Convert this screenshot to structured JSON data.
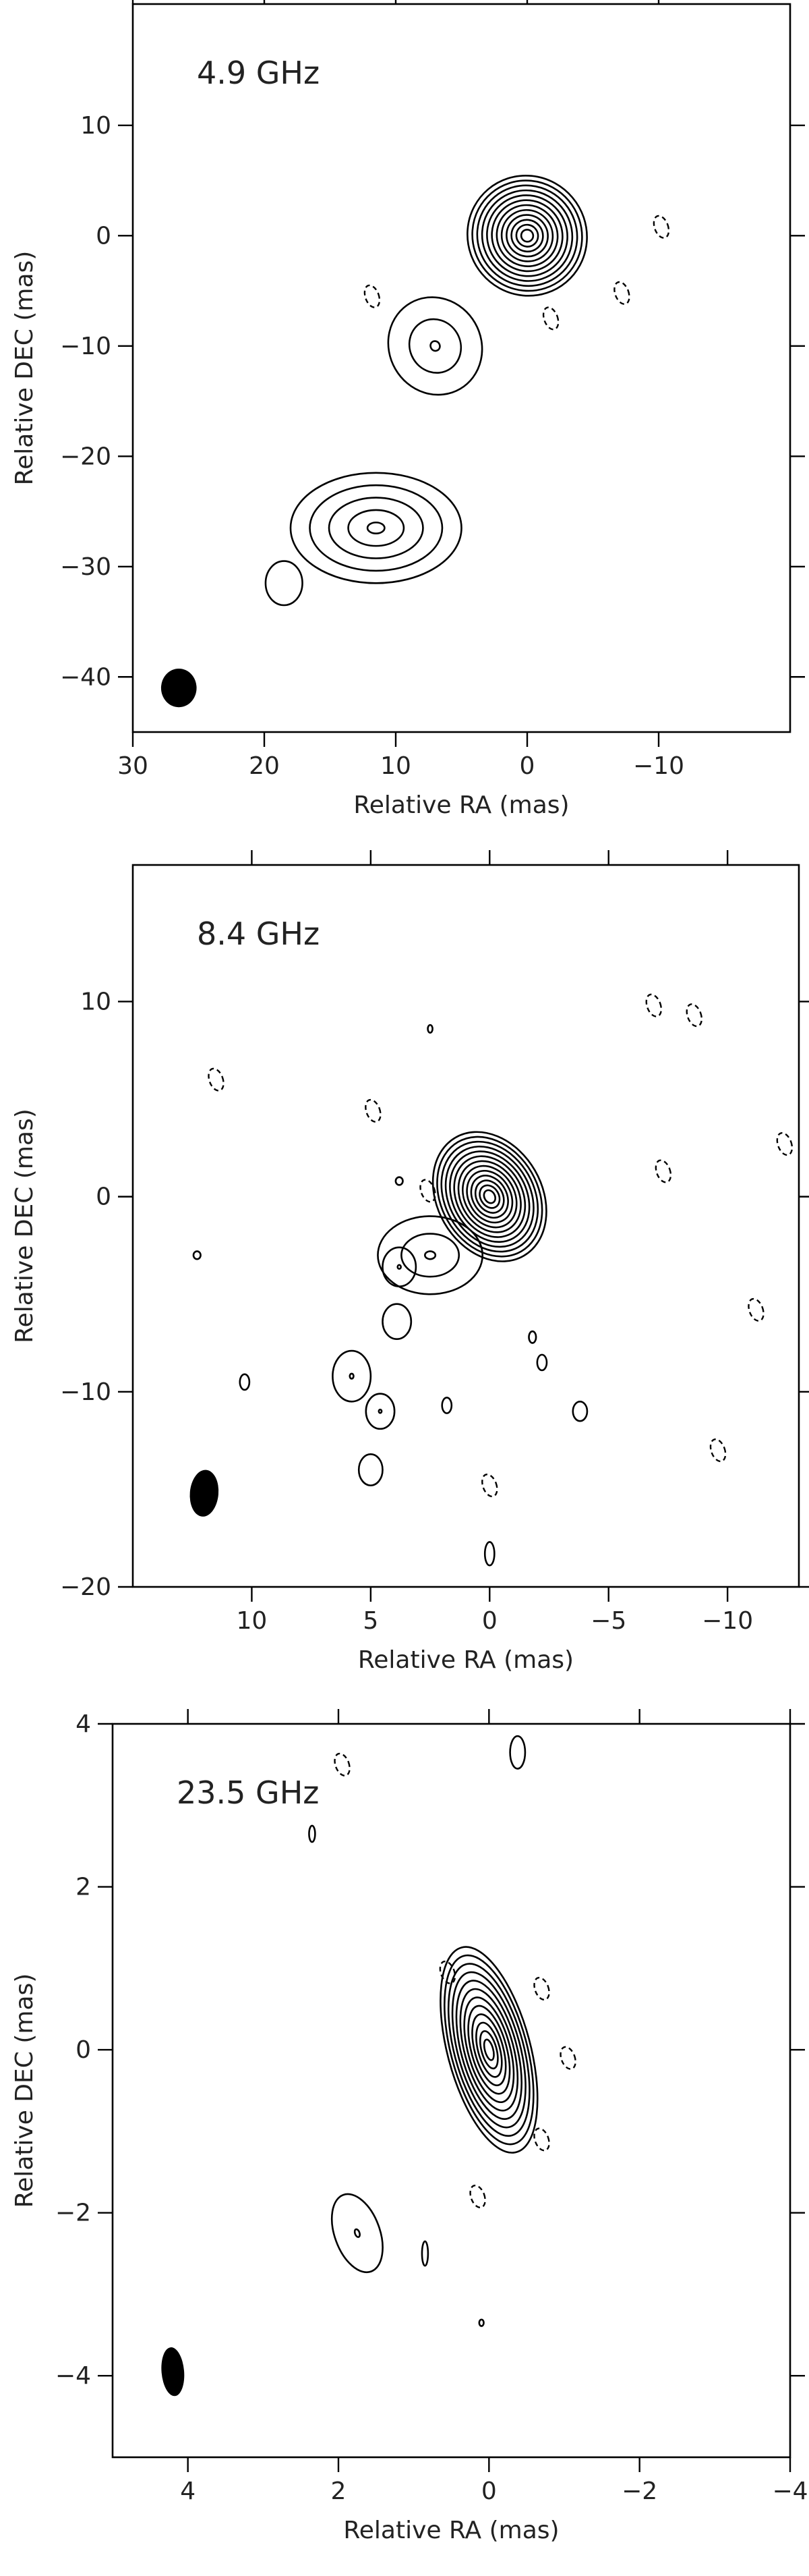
{
  "chart_data": [
    {
      "type": "contour",
      "annotation": "4.9 GHz",
      "xlabel": "Relative RA (mas)",
      "ylabel": "Relative DEC (mas)",
      "xlim": [
        30,
        -20
      ],
      "ylim": [
        -45,
        21
      ],
      "x_reversed": true,
      "xticks": [
        30,
        20,
        10,
        0,
        -10
      ],
      "yticks": [
        10,
        0,
        -10,
        -20,
        -30,
        -40
      ],
      "grid": false,
      "beam": {
        "x": 26.5,
        "y": -41,
        "major_mas": 3.5,
        "minor_mas": 2.7,
        "pa_deg": 0
      },
      "components": [
        {
          "x": 0.0,
          "y": 0.0,
          "levels": 12,
          "sx": 4.5,
          "sy": 5.5,
          "angle": -40
        },
        {
          "x": 11.5,
          "y": -26.5,
          "levels": 5,
          "sx": 6.5,
          "sy": 5.0,
          "angle": 0
        },
        {
          "x": 7.0,
          "y": -10.0,
          "levels": 3,
          "sx": 3.5,
          "sy": 4.5,
          "angle": -30
        },
        {
          "x": 18.5,
          "y": -31.5,
          "levels": 1,
          "sx": 1.4,
          "sy": 2.0,
          "angle": 0
        }
      ],
      "negative_contours": [
        {
          "x": 11.8,
          "y": -5.5
        },
        {
          "x": -7.2,
          "y": -5.2
        },
        {
          "x": -10.2,
          "y": 0.8
        },
        {
          "x": -1.8,
          "y": -7.5
        }
      ]
    },
    {
      "type": "contour",
      "annotation": "8.4 GHz",
      "xlabel": "Relative RA (mas)",
      "ylabel": "Relative DEC (mas)",
      "xlim": [
        15,
        -13
      ],
      "ylim": [
        -20,
        17
      ],
      "x_reversed": true,
      "xticks": [
        10,
        5,
        0,
        -5,
        -10
      ],
      "yticks": [
        10,
        0,
        -10,
        -20
      ],
      "grid": false,
      "beam": {
        "x": 12.0,
        "y": -15.2,
        "major_mas": 2.4,
        "minor_mas": 1.2,
        "pa_deg": 5
      },
      "components": [
        {
          "x": 0.0,
          "y": 0.0,
          "levels": 13,
          "sx": 2.2,
          "sy": 3.5,
          "angle": -30
        },
        {
          "x": 2.5,
          "y": -3.0,
          "levels": 3,
          "sx": 2.2,
          "sy": 2.0,
          "angle": 0
        },
        {
          "x": 3.8,
          "y": -3.6,
          "levels": 2,
          "sx": 0.7,
          "sy": 1.0,
          "angle": 0
        },
        {
          "x": 5.8,
          "y": -9.2,
          "levels": 2,
          "sx": 0.8,
          "sy": 1.3,
          "angle": 0
        },
        {
          "x": 4.6,
          "y": -11.0,
          "levels": 2,
          "sx": 0.6,
          "sy": 0.9,
          "angle": 0
        },
        {
          "x": 3.9,
          "y": -6.4,
          "levels": 1,
          "sx": 0.6,
          "sy": 0.9,
          "angle": 0
        },
        {
          "x": 5.0,
          "y": -14.0,
          "levels": 1,
          "sx": 0.5,
          "sy": 0.8,
          "angle": 0
        },
        {
          "x": -3.8,
          "y": -11.0,
          "levels": 1,
          "sx": 0.3,
          "sy": 0.5,
          "angle": 0
        },
        {
          "x": 0.0,
          "y": -18.3,
          "levels": 1,
          "sx": 0.2,
          "sy": 0.6,
          "angle": 0
        },
        {
          "x": 1.8,
          "y": -10.7,
          "levels": 1,
          "sx": 0.2,
          "sy": 0.4,
          "angle": 0
        },
        {
          "x": -2.2,
          "y": -8.5,
          "levels": 1,
          "sx": 0.2,
          "sy": 0.4,
          "angle": 0
        },
        {
          "x": 10.3,
          "y": -9.5,
          "levels": 1,
          "sx": 0.2,
          "sy": 0.4,
          "angle": 0
        },
        {
          "x": -1.8,
          "y": -7.2,
          "levels": 1,
          "sx": 0.15,
          "sy": 0.3,
          "angle": 0
        },
        {
          "x": 2.5,
          "y": 8.6,
          "levels": 1,
          "sx": 0.1,
          "sy": 0.2,
          "angle": 0
        },
        {
          "x": 3.8,
          "y": 0.8,
          "levels": 1,
          "sx": 0.15,
          "sy": 0.2,
          "angle": 0
        },
        {
          "x": 12.3,
          "y": -3.0,
          "levels": 1,
          "sx": 0.15,
          "sy": 0.2,
          "angle": 0
        }
      ],
      "negative_contours": [
        {
          "x": 11.5,
          "y": 6.0
        },
        {
          "x": 4.9,
          "y": 4.4
        },
        {
          "x": -6.9,
          "y": 9.8
        },
        {
          "x": -8.6,
          "y": 9.3
        },
        {
          "x": -7.3,
          "y": 1.3
        },
        {
          "x": -11.2,
          "y": -5.8
        },
        {
          "x": 2.6,
          "y": 0.3
        },
        {
          "x": -12.4,
          "y": 2.7
        },
        {
          "x": 0.0,
          "y": -14.8
        },
        {
          "x": -9.6,
          "y": -13.0
        }
      ]
    },
    {
      "type": "contour",
      "annotation": "23.5 GHz",
      "xlabel": "Relative RA (mas)",
      "ylabel": "Relative DEC (mas)",
      "xlim": [
        5,
        -4
      ],
      "ylim": [
        -5,
        4
      ],
      "x_reversed": true,
      "xticks": [
        4,
        2,
        0,
        -2,
        -4
      ],
      "yticks": [
        4,
        2,
        0,
        -2,
        -4
      ],
      "grid": false,
      "beam": {
        "x": 4.2,
        "y": -3.95,
        "major_mas": 0.6,
        "minor_mas": 0.3,
        "pa_deg": -5
      },
      "components": [
        {
          "x": 0.0,
          "y": 0.0,
          "levels": 12,
          "sx": 0.55,
          "sy": 1.3,
          "angle": -15
        },
        {
          "x": 1.75,
          "y": -2.25,
          "levels": 2,
          "sx": 0.3,
          "sy": 0.5,
          "angle": -20
        },
        {
          "x": -0.38,
          "y": 3.65,
          "levels": 1,
          "sx": 0.1,
          "sy": 0.2,
          "angle": 0
        },
        {
          "x": 0.85,
          "y": -2.5,
          "levels": 1,
          "sx": 0.04,
          "sy": 0.15,
          "angle": 0
        },
        {
          "x": 2.35,
          "y": 2.65,
          "levels": 1,
          "sx": 0.04,
          "sy": 0.1,
          "angle": 0
        },
        {
          "x": 0.1,
          "y": -3.35,
          "levels": 1,
          "sx": 0.03,
          "sy": 0.04,
          "angle": 0
        }
      ],
      "negative_contours": [
        {
          "x": 0.55,
          "y": 0.95
        },
        {
          "x": -1.05,
          "y": -0.1
        },
        {
          "x": -0.7,
          "y": -1.1
        },
        {
          "x": -0.7,
          "y": 0.75
        },
        {
          "x": 0.15,
          "y": -1.8
        },
        {
          "x": 1.95,
          "y": 3.5
        }
      ]
    }
  ]
}
